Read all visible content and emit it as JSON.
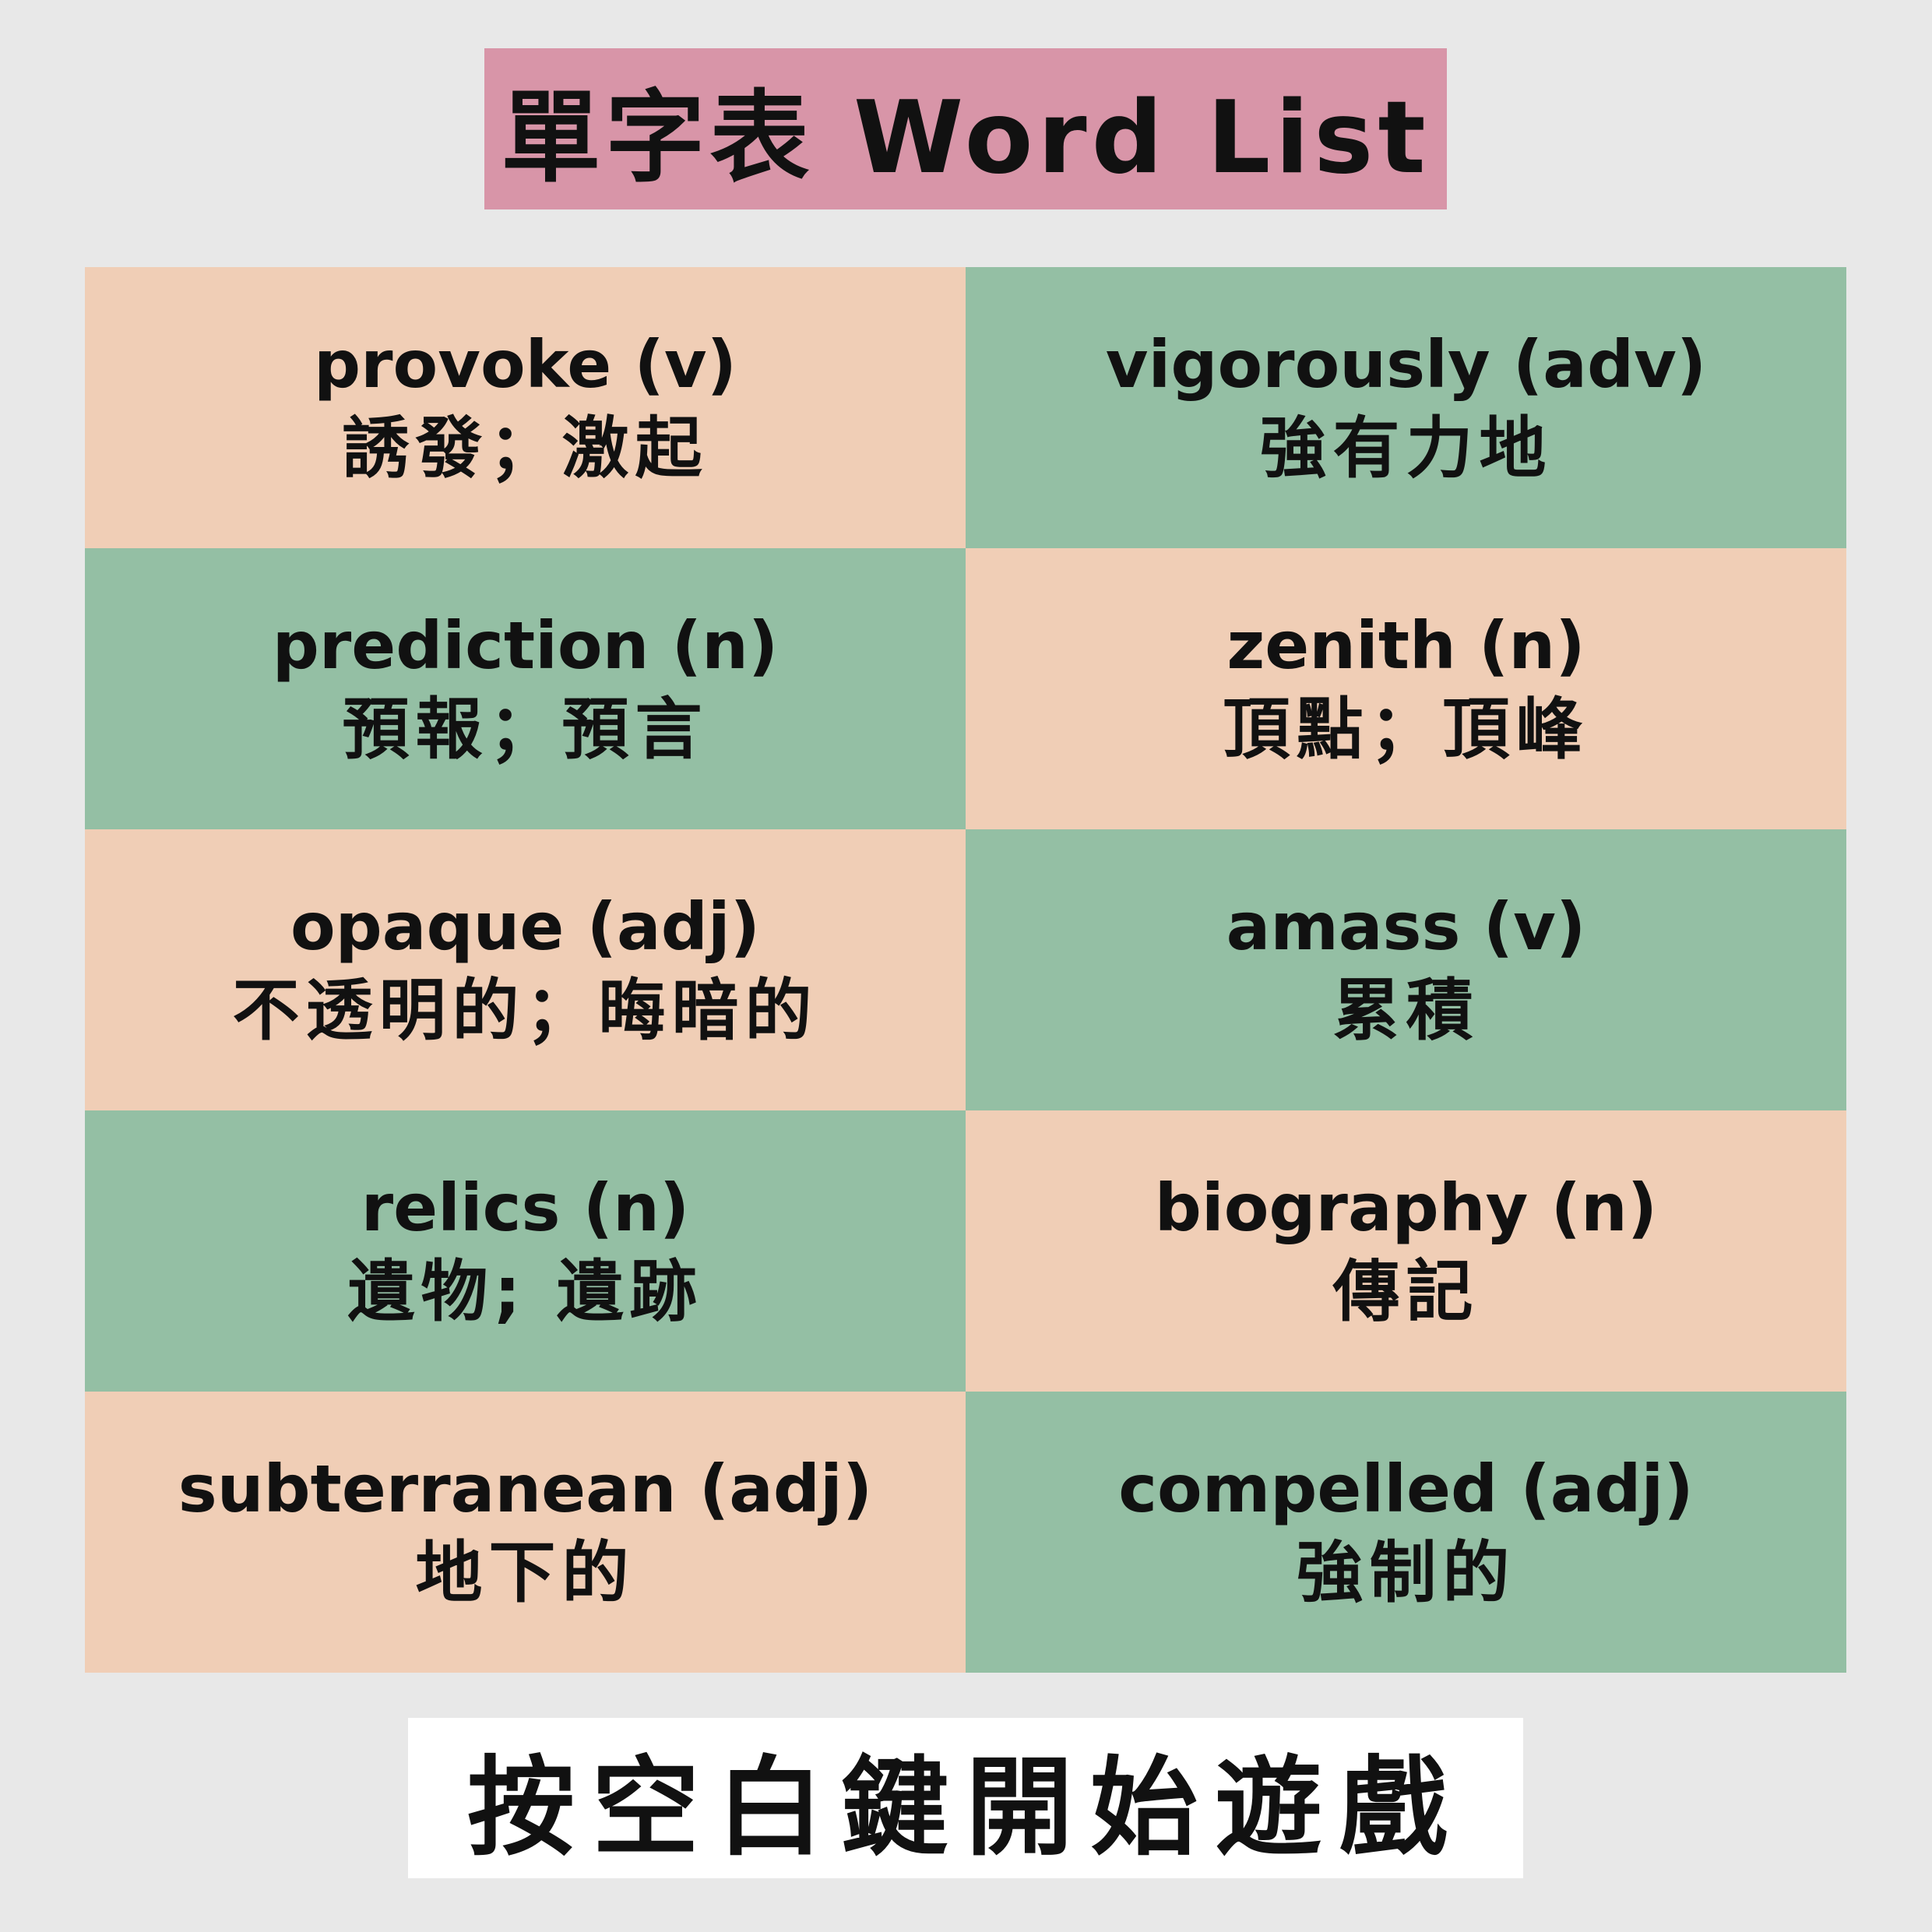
{
  "title": "單字表 Word List",
  "words": [
    {
      "word": "provoke (v)",
      "meaning": "誘發；激起",
      "color": "peach"
    },
    {
      "word": "vigorously (adv)",
      "meaning": "強有力地",
      "color": "green"
    },
    {
      "word": "prediction (n)",
      "meaning": "預報；預言",
      "color": "green"
    },
    {
      "word": "zenith (n)",
      "meaning": "頂點；頂峰",
      "color": "peach"
    },
    {
      "word": "opaque (adj)",
      "meaning": "不透明的；晦暗的",
      "color": "peach"
    },
    {
      "word": "amass (v)",
      "meaning": "累積",
      "color": "green"
    },
    {
      "word": "relics (n)",
      "meaning": "遺物; 遺跡",
      "color": "green"
    },
    {
      "word": "biography (n)",
      "meaning": "傳記",
      "color": "peach"
    },
    {
      "word": "subterranean (adj)",
      "meaning": "地下的",
      "color": "peach"
    },
    {
      "word": "compelled (adj)",
      "meaning": "強制的",
      "color": "green"
    }
  ],
  "start_prompt": "按空白鍵開始遊戲",
  "colors": {
    "background": "#e8e8e8",
    "title_banner": "#d895a8",
    "peach": "#f0ceb6",
    "green": "#94bfa4",
    "start_banner": "#ffffff",
    "text": "#111111"
  }
}
